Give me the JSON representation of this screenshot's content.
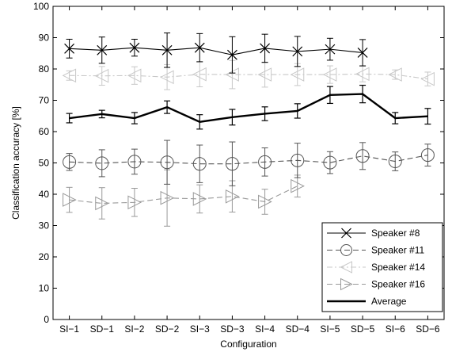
{
  "chart_data": {
    "type": "line",
    "xlabel": "Configuration",
    "ylabel": "Classification accuracy [%]",
    "ylim": [
      0,
      100
    ],
    "yticks": [
      0,
      10,
      20,
      30,
      40,
      50,
      60,
      70,
      80,
      90,
      100
    ],
    "categories": [
      "SI−1",
      "SD−1",
      "SI−2",
      "SD−2",
      "SI−3",
      "SD−3",
      "SI−4",
      "SD−4",
      "SI−5",
      "SD−5",
      "SI−6",
      "SD−6"
    ],
    "legend_position": "bottom-right",
    "series": [
      {
        "name": "Speaker #8",
        "color": "#000000",
        "marker": "x",
        "dash": "solid",
        "values": [
          86.5,
          86.0,
          86.8,
          86.0,
          86.8,
          84.5,
          86.6,
          85.6,
          86.3,
          85.2,
          null,
          null
        ],
        "errors": [
          3.0,
          4.2,
          2.7,
          5.5,
          4.5,
          5.8,
          4.5,
          4.8,
          3.5,
          4.2,
          null,
          null
        ]
      },
      {
        "name": "Speaker #11",
        "color": "#555555",
        "marker": "circle",
        "dash": "dashed",
        "values": [
          50.3,
          49.9,
          50.4,
          50.2,
          49.7,
          49.7,
          50.3,
          50.8,
          50.1,
          52.2,
          50.5,
          52.5
        ],
        "errors": [
          2.7,
          4.3,
          4.0,
          7.0,
          6.0,
          7.0,
          4.5,
          5.5,
          3.5,
          4.3,
          3.0,
          3.5
        ]
      },
      {
        "name": "Speaker #14",
        "color": "#c8c8c8",
        "marker": "triangle-left",
        "dash": "dashdot",
        "values": [
          77.9,
          77.8,
          77.9,
          77.4,
          78.3,
          78.2,
          78.2,
          78.2,
          78.2,
          78.4,
          78.2,
          76.8
        ],
        "errors": [
          1.5,
          3.0,
          2.8,
          4.0,
          4.0,
          4.5,
          4.0,
          3.5,
          2.8,
          2.5,
          1.5,
          2.2
        ]
      },
      {
        "name": "Speaker #16",
        "color": "#999999",
        "marker": "triangle-right",
        "dash": "dashed",
        "values": [
          38.2,
          37.1,
          37.4,
          38.8,
          38.5,
          39.3,
          37.6,
          42.6,
          null,
          null,
          null,
          null
        ],
        "errors": [
          4.0,
          5.0,
          4.5,
          9.0,
          4.5,
          5.0,
          4.0,
          3.5,
          null,
          null,
          null,
          null
        ]
      },
      {
        "name": "Average",
        "color": "#000000",
        "marker": "none",
        "dash": "solid",
        "thick": true,
        "values": [
          64.3,
          65.6,
          64.3,
          67.8,
          63.1,
          64.6,
          65.7,
          66.6,
          71.7,
          72.0,
          64.3,
          64.9
        ],
        "errors": [
          1.5,
          1.2,
          1.8,
          2.0,
          2.3,
          2.5,
          2.2,
          2.3,
          2.7,
          2.8,
          1.8,
          2.5
        ]
      }
    ]
  }
}
